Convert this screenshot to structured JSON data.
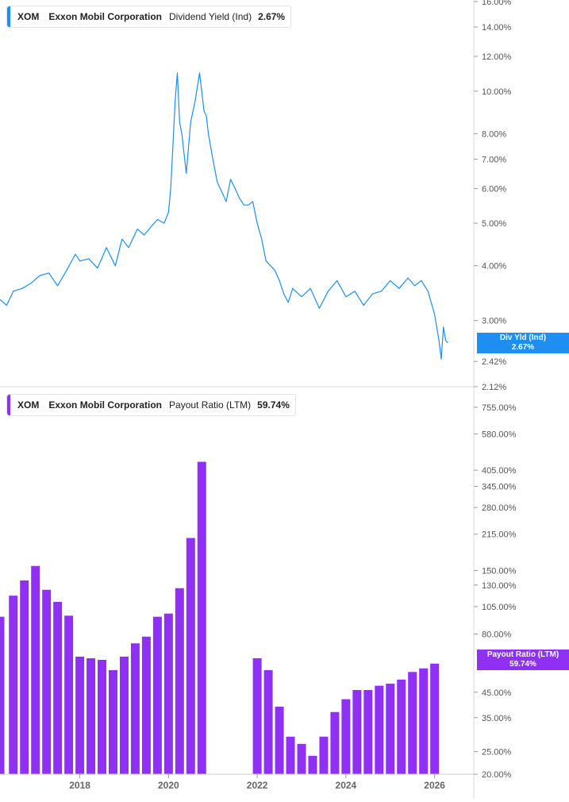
{
  "colors": {
    "yield": "#1e8ff0",
    "payout": "#9130f5"
  },
  "legends": {
    "yield": {
      "ticker": "XOM",
      "company": "Exxon Mobil Corporation",
      "metric": "Dividend Yield (Ind)",
      "value": "2.67%"
    },
    "payout": {
      "ticker": "XOM",
      "company": "Exxon Mobil Corporation",
      "metric": "Payout Ratio (LTM)",
      "value": "59.74%"
    }
  },
  "flags": {
    "yield": {
      "label": "Div Yld (Ind)",
      "value": "2.67%"
    },
    "payout": {
      "label": "Payout Ratio (LTM)",
      "value": "59.74%"
    }
  },
  "chart_data": [
    {
      "type": "line",
      "scale": "log",
      "xlim": [
        2016.2,
        2026.4
      ],
      "ylim": [
        2.12,
        16.0
      ],
      "y_ticks": [
        16.0,
        14.0,
        12.0,
        10.0,
        8.0,
        7.0,
        6.0,
        5.0,
        4.0,
        3.0,
        2.42,
        2.12
      ],
      "y_tick_labels": [
        "16.00%",
        "14.00%",
        "12.00%",
        "10.00%",
        "8.00%",
        "7.00%",
        "6.00%",
        "5.00%",
        "4.00%",
        "3.00%",
        "2.42%",
        "2.12%"
      ],
      "series": [
        {
          "name": "Dividend Yield (Ind)",
          "x": [
            2016.2,
            2016.35,
            2016.5,
            2016.7,
            2016.9,
            2017.1,
            2017.3,
            2017.5,
            2017.7,
            2017.9,
            2018.0,
            2018.2,
            2018.4,
            2018.6,
            2018.8,
            2018.95,
            2019.1,
            2019.3,
            2019.45,
            2019.6,
            2019.75,
            2019.9,
            2020.0,
            2020.05,
            2020.1,
            2020.15,
            2020.2,
            2020.25,
            2020.3,
            2020.4,
            2020.5,
            2020.6,
            2020.7,
            2020.8,
            2020.85,
            2020.9,
            2021.0,
            2021.1,
            2021.2,
            2021.3,
            2021.4,
            2021.5,
            2021.6,
            2021.7,
            2021.8,
            2021.9,
            2022.0,
            2022.1,
            2022.2,
            2022.3,
            2022.4,
            2022.5,
            2022.6,
            2022.7,
            2022.8,
            2023.0,
            2023.2,
            2023.4,
            2023.6,
            2023.8,
            2024.0,
            2024.2,
            2024.4,
            2024.6,
            2024.8,
            2025.0,
            2025.2,
            2025.4,
            2025.55,
            2025.7,
            2025.85,
            2026.0,
            2026.1,
            2026.15,
            2026.2,
            2026.25,
            2026.3
          ],
          "values": [
            3.35,
            3.25,
            3.5,
            3.55,
            3.65,
            3.8,
            3.85,
            3.6,
            3.9,
            4.25,
            4.1,
            4.15,
            3.95,
            4.4,
            4.0,
            4.6,
            4.4,
            4.85,
            4.7,
            4.9,
            5.1,
            5.0,
            5.3,
            6.0,
            7.5,
            9.5,
            11.0,
            8.5,
            8.0,
            6.5,
            8.5,
            9.5,
            11.0,
            9.0,
            8.8,
            8.0,
            7.0,
            6.2,
            5.9,
            5.6,
            6.3,
            6.0,
            5.7,
            5.5,
            5.5,
            5.6,
            5.0,
            4.6,
            4.1,
            4.0,
            3.9,
            3.7,
            3.45,
            3.3,
            3.55,
            3.4,
            3.55,
            3.2,
            3.5,
            3.7,
            3.4,
            3.5,
            3.25,
            3.45,
            3.5,
            3.7,
            3.55,
            3.75,
            3.6,
            3.7,
            3.5,
            3.1,
            2.7,
            2.45,
            2.9,
            2.7,
            2.67
          ]
        }
      ]
    },
    {
      "type": "bar",
      "scale": "log",
      "xlim": [
        2016.2,
        2026.4
      ],
      "ylim": [
        20.0,
        760.0
      ],
      "y_ticks": [
        755.0,
        580.0,
        405.0,
        345.0,
        280.0,
        215.0,
        150.0,
        130.0,
        105.0,
        80.0,
        45.0,
        35.0,
        25.0,
        20.0
      ],
      "y_tick_labels": [
        "755.00%",
        "580.00%",
        "405.00%",
        "345.00%",
        "280.00%",
        "215.00%",
        "150.00%",
        "130.00%",
        "105.00%",
        "80.00%",
        "45.00%",
        "35.00%",
        "25.00%",
        "20.00%"
      ],
      "x_ticks": [
        2018,
        2020,
        2022,
        2024,
        2026
      ],
      "x_tick_labels": [
        "2018",
        "2020",
        "2022",
        "2024",
        "2026"
      ],
      "series": [
        {
          "name": "Payout Ratio (LTM)",
          "x": [
            2016.2,
            2016.5,
            2016.75,
            2017.0,
            2017.25,
            2017.5,
            2017.75,
            2018.0,
            2018.25,
            2018.5,
            2018.75,
            2019.0,
            2019.25,
            2019.5,
            2019.75,
            2020.0,
            2020.25,
            2020.5,
            2020.75,
            2022.0,
            2022.25,
            2022.5,
            2022.75,
            2023.0,
            2023.25,
            2023.5,
            2023.75,
            2024.0,
            2024.25,
            2024.5,
            2024.75,
            2025.0,
            2025.25,
            2025.5,
            2025.75,
            2026.0
          ],
          "values": [
            95,
            117,
            136,
            157,
            124,
            110,
            96,
            64,
            63,
            62,
            56,
            64,
            73,
            78,
            95,
            98,
            126,
            207,
            440,
            63,
            56,
            39,
            29,
            27,
            24,
            29,
            37,
            42,
            46,
            46,
            48,
            49,
            51,
            55,
            57,
            59.74
          ]
        }
      ]
    }
  ]
}
